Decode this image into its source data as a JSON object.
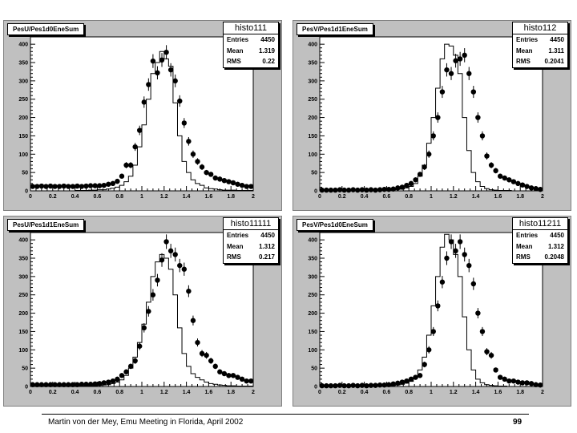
{
  "chart_data": [
    {
      "type": "histogram",
      "title": "PesU/Pes1d0EneSum",
      "stats": {
        "name": "histo111",
        "entries_label": "Entries",
        "entries": "4450",
        "mean_label": "Mean",
        "mean": "1.319",
        "rms_label": "RMS",
        "rms": "0.22"
      },
      "xlim": [
        0,
        2
      ],
      "ylim": [
        0,
        420
      ],
      "x_ticks": [
        "0",
        "0.2",
        "0.4",
        "0.6",
        "0.8",
        "1",
        "1.2",
        "1.4",
        "1.6",
        "1.8",
        "2"
      ],
      "y_ticks": [
        "0",
        "50",
        "100",
        "150",
        "200",
        "250",
        "300",
        "350",
        "400"
      ],
      "histogram_values": [
        0,
        0,
        0,
        0,
        0,
        0,
        0,
        0,
        0,
        0,
        1,
        1,
        1,
        2,
        2,
        3,
        3,
        5,
        7,
        10,
        15,
        25,
        40,
        70,
        120,
        180,
        250,
        320,
        350,
        380,
        360,
        340,
        240,
        150,
        80,
        50,
        30,
        20,
        15,
        8,
        6,
        5,
        3,
        2,
        2,
        2,
        1,
        1,
        1,
        1
      ],
      "point_values": [
        12,
        12,
        13,
        12,
        13,
        12,
        12,
        13,
        12,
        12,
        13,
        12,
        13,
        14,
        14,
        14,
        15,
        18,
        20,
        26,
        40,
        70,
        70,
        120,
        165,
        242,
        290,
        354,
        322,
        357,
        378,
        330,
        300,
        245,
        185,
        135,
        100,
        80,
        65,
        50,
        45,
        35,
        32,
        28,
        25,
        22,
        18,
        15,
        12,
        12
      ]
    },
    {
      "type": "histogram",
      "title": "PesV/Pes1d1EneSum",
      "stats": {
        "name": "histo112",
        "entries_label": "Entries",
        "entries": "4450",
        "mean_label": "Mean",
        "mean": "1.311",
        "rms_label": "RMS",
        "rms": "0.2041"
      },
      "xlim": [
        0,
        2
      ],
      "ylim": [
        0,
        420
      ],
      "x_ticks": [
        "0",
        "0.2",
        "0.4",
        "0.6",
        "0.8",
        "1",
        "1.2",
        "1.4",
        "1.6",
        "1.8",
        "2"
      ],
      "y_ticks": [
        "0",
        "50",
        "100",
        "150",
        "200",
        "250",
        "300",
        "350",
        "400"
      ],
      "histogram_values": [
        0,
        0,
        0,
        0,
        0,
        0,
        0,
        0,
        0,
        0,
        0,
        1,
        1,
        1,
        2,
        2,
        3,
        4,
        5,
        8,
        12,
        20,
        40,
        70,
        130,
        200,
        280,
        360,
        400,
        395,
        370,
        320,
        200,
        110,
        50,
        25,
        12,
        6,
        3,
        2,
        1,
        1,
        1,
        0,
        0,
        0,
        0,
        0,
        0,
        0
      ],
      "point_values": [
        2,
        2,
        2,
        2,
        3,
        2,
        2,
        3,
        2,
        3,
        2,
        3,
        2,
        3,
        4,
        4,
        5,
        8,
        10,
        15,
        20,
        30,
        45,
        65,
        100,
        150,
        200,
        270,
        330,
        320,
        355,
        360,
        370,
        320,
        270,
        200,
        150,
        95,
        70,
        55,
        40,
        35,
        30,
        25,
        20,
        16,
        12,
        8,
        6,
        4
      ]
    },
    {
      "type": "histogram",
      "title": "PesU/Pes1d1EneSum",
      "stats": {
        "name": "histo11111",
        "entries_label": "Entries",
        "entries": "4450",
        "mean_label": "Mean",
        "mean": "1.312",
        "rms_label": "RMS",
        "rms": "0.217"
      },
      "xlim": [
        0,
        2
      ],
      "ylim": [
        0,
        420
      ],
      "x_ticks": [
        "0",
        "0.2",
        "0.4",
        "0.6",
        "0.8",
        "1",
        "1.2",
        "1.4",
        "1.6",
        "1.8",
        "2"
      ],
      "y_ticks": [
        "0",
        "50",
        "100",
        "150",
        "200",
        "250",
        "300",
        "350",
        "400"
      ],
      "histogram_values": [
        0,
        0,
        0,
        0,
        0,
        0,
        0,
        0,
        0,
        0,
        1,
        1,
        1,
        2,
        2,
        3,
        4,
        5,
        8,
        12,
        18,
        30,
        50,
        80,
        120,
        170,
        230,
        300,
        340,
        360,
        350,
        320,
        250,
        160,
        90,
        55,
        35,
        25,
        18,
        12,
        8,
        6,
        4,
        3,
        2,
        2,
        1,
        1,
        1,
        1
      ],
      "point_values": [
        5,
        5,
        5,
        5,
        5,
        5,
        5,
        5,
        5,
        5,
        5,
        6,
        6,
        6,
        7,
        8,
        10,
        12,
        15,
        20,
        30,
        40,
        55,
        70,
        110,
        160,
        205,
        250,
        290,
        345,
        395,
        370,
        360,
        330,
        320,
        260,
        180,
        120,
        90,
        85,
        70,
        55,
        40,
        35,
        30,
        30,
        25,
        20,
        15,
        15
      ]
    },
    {
      "type": "histogram",
      "title": "PesV/Pes1d0EneSum",
      "stats": {
        "name": "histo11211",
        "entries_label": "Entries",
        "entries": "4450",
        "mean_label": "Mean",
        "mean": "1.312",
        "rms_label": "RMS",
        "rms": "0.2048"
      },
      "xlim": [
        0,
        2
      ],
      "ylim": [
        0,
        420
      ],
      "x_ticks": [
        "0",
        "0.2",
        "0.4",
        "0.6",
        "0.8",
        "1",
        "1.2",
        "1.4",
        "1.6",
        "1.8",
        "2"
      ],
      "y_ticks": [
        "0",
        "50",
        "100",
        "150",
        "200",
        "250",
        "300",
        "350",
        "400"
      ],
      "histogram_values": [
        0,
        0,
        0,
        0,
        0,
        0,
        0,
        0,
        0,
        0,
        0,
        1,
        1,
        1,
        2,
        2,
        3,
        4,
        6,
        9,
        14,
        25,
        45,
        80,
        140,
        220,
        300,
        380,
        415,
        400,
        360,
        300,
        190,
        100,
        45,
        20,
        10,
        5,
        3,
        2,
        1,
        1,
        0,
        0,
        0,
        0,
        0,
        0,
        0,
        0
      ],
      "point_values": [
        2,
        2,
        2,
        2,
        3,
        2,
        2,
        3,
        2,
        3,
        2,
        3,
        3,
        4,
        4,
        5,
        7,
        9,
        12,
        15,
        20,
        25,
        30,
        60,
        100,
        150,
        220,
        285,
        350,
        395,
        370,
        395,
        360,
        330,
        280,
        200,
        150,
        95,
        85,
        45,
        25,
        20,
        15,
        15,
        12,
        10,
        10,
        8,
        5,
        4
      ]
    }
  ],
  "footer": {
    "text": "Martin von der Mey, Emu Meeting in Florida, April 2002",
    "page_number": "99"
  }
}
